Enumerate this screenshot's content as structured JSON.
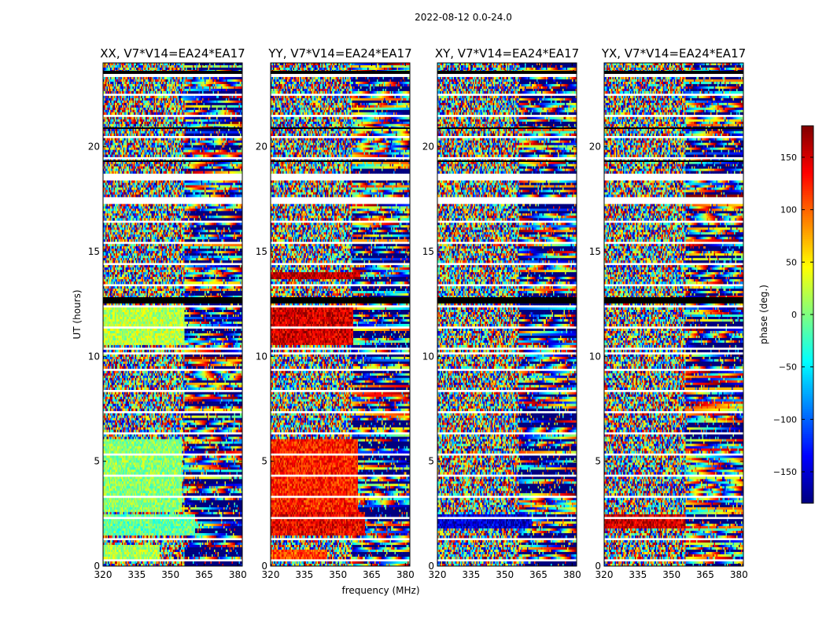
{
  "figure": {
    "suptitle": "2022-08-12 0.0-24.0",
    "xlabel": "frequency (MHz)",
    "ylabel": "UT (hours)"
  },
  "colorbar": {
    "label": "phase (deg.)",
    "range": [
      -180,
      180
    ],
    "ticks": [
      -150,
      -100,
      -50,
      0,
      50,
      100,
      150
    ],
    "tick_labels": [
      "−150",
      "−100",
      "−50",
      "0",
      "50",
      "100",
      "150"
    ],
    "colormap": [
      "#00007f",
      "#0000ff",
      "#007fff",
      "#00ffff",
      "#7fff7f",
      "#ffff00",
      "#ff7f00",
      "#ff0000",
      "#7f0000"
    ]
  },
  "chart_data": {
    "type": "heatmap",
    "title": "2022-08-12 0.0-24.0",
    "xlabel": "frequency (MHz)",
    "ylabel": "UT (hours)",
    "xlim": [
      320,
      382
    ],
    "ylim": [
      0,
      24
    ],
    "xticks": [
      320,
      335,
      350,
      365,
      380
    ],
    "xtick_labels": [
      "320",
      "335",
      "350",
      "365",
      "380"
    ],
    "yticks": [
      0,
      5,
      10,
      15,
      20
    ],
    "ytick_labels": [
      "0",
      "5",
      "10",
      "15",
      "20"
    ],
    "value": "phase (deg.)",
    "value_range": [
      -180,
      180
    ],
    "flagged_ut_ranges": [
      [
        23.3,
        23.55
      ],
      [
        18.35,
        18.75
      ],
      [
        17.25,
        17.6
      ],
      [
        10.1,
        10.25
      ]
    ],
    "panels": [
      {
        "title": "XX, V7*V14=EA24*EA17",
        "coherent_regions": [
          {
            "ut": [
              1.5,
              2.5
            ],
            "freq": [
              320,
              361
            ],
            "phase_deg": -10
          },
          {
            "ut": [
              2.6,
              6.0
            ],
            "freq": [
              320,
              355
            ],
            "phase_deg": 5
          },
          {
            "ut": [
              10.5,
              12.3
            ],
            "freq": [
              320,
              356
            ],
            "phase_deg": 20
          },
          {
            "ut": [
              0.2,
              1.0
            ],
            "freq": [
              320,
              345
            ],
            "phase_deg": 15
          }
        ]
      },
      {
        "title": "YY, V7*V14=EA24*EA17",
        "coherent_regions": [
          {
            "ut": [
              1.5,
              2.6
            ],
            "freq": [
              320,
              362
            ],
            "phase_deg": 140
          },
          {
            "ut": [
              2.6,
              6.0
            ],
            "freq": [
              320,
              359
            ],
            "phase_deg": 125
          },
          {
            "ut": [
              10.5,
              12.3
            ],
            "freq": [
              320,
              357
            ],
            "phase_deg": 150
          },
          {
            "ut": [
              13.7,
              14.0
            ],
            "freq": [
              320,
              360
            ],
            "phase_deg": 160
          },
          {
            "ut": [
              0.2,
              0.8
            ],
            "freq": [
              320,
              345
            ],
            "phase_deg": 110
          }
        ]
      },
      {
        "title": "XY, V7*V14=EA24*EA17",
        "coherent_regions": [
          {
            "ut": [
              1.8,
              2.5
            ],
            "freq": [
              320,
              362
            ],
            "phase_deg": -150
          }
        ]
      },
      {
        "title": "YX, V7*V14=EA24*EA17",
        "coherent_regions": [
          {
            "ut": [
              1.8,
              2.5
            ],
            "freq": [
              320,
              356
            ],
            "phase_deg": 150
          }
        ]
      }
    ]
  }
}
